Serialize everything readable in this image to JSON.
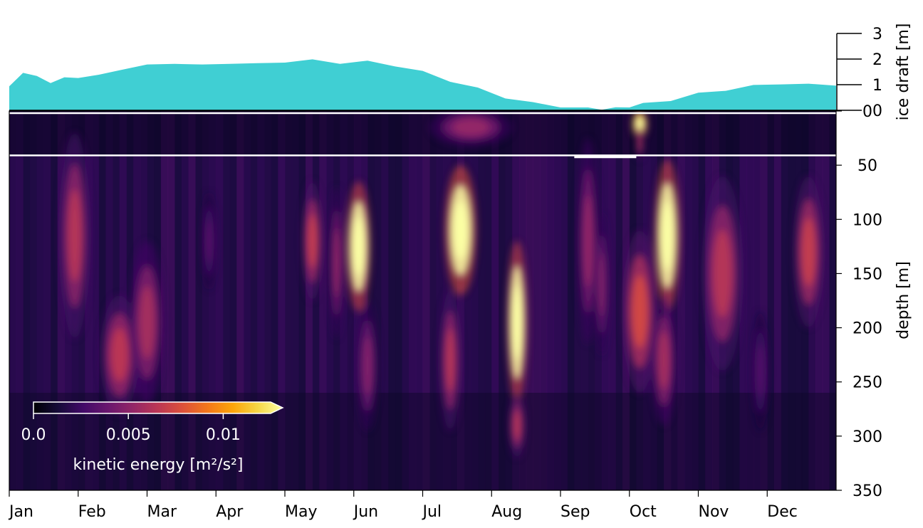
{
  "chart_data": [
    {
      "type": "area",
      "panel": "ice-draft",
      "ylabel": "ice draft [m]",
      "ylim": [
        0,
        3
      ],
      "yticks": [
        "0",
        "1",
        "2",
        "3"
      ],
      "y_axis_side": "right",
      "fill_color": "#40cfd3",
      "x_unit": "month",
      "x": [
        0.0,
        0.2,
        0.4,
        0.6,
        0.8,
        1.0,
        1.3,
        1.6,
        2.0,
        2.4,
        2.8,
        3.2,
        3.6,
        4.0,
        4.4,
        4.8,
        5.2,
        5.6,
        6.0,
        6.4,
        6.8,
        7.2,
        7.6,
        8.0,
        8.4,
        8.6,
        8.8,
        9.0,
        9.2,
        9.6,
        10.0,
        10.4,
        10.8,
        11.2,
        11.6,
        12.0
      ],
      "y": [
        0.9,
        1.5,
        1.3,
        1.1,
        1.25,
        1.3,
        1.35,
        1.6,
        1.75,
        1.85,
        1.75,
        1.85,
        1.8,
        1.9,
        1.95,
        1.85,
        1.9,
        1.75,
        1.5,
        1.15,
        0.85,
        0.5,
        0.28,
        0.15,
        0.07,
        0.06,
        0.08,
        0.15,
        0.25,
        0.4,
        0.65,
        0.8,
        0.95,
        1.05,
        1.0,
        1.0
      ]
    },
    {
      "type": "heatmap",
      "panel": "kinetic-energy",
      "ylabel": "depth [m]",
      "ylim": [
        350,
        0
      ],
      "yticks": [
        "0",
        "50",
        "100",
        "150",
        "200",
        "250",
        "300",
        "350"
      ],
      "y_axis_side": "right",
      "x_months": [
        "Jan",
        "Feb",
        "Mar",
        "Apr",
        "May",
        "Jun",
        "Jul",
        "Aug",
        "Sep",
        "Oct",
        "Nov",
        "Dec"
      ],
      "colormap": "inferno",
      "colorbar": {
        "label": "kinetic energy [m²/s²]",
        "ticks": [
          "0.0",
          "0.005",
          "0.01"
        ],
        "range": [
          0,
          0.0125
        ],
        "extend": "max",
        "placement": "lower-left"
      },
      "horizontal_lines_depth_m": [
        2,
        41
      ],
      "blobs": [
        {
          "month": 0.95,
          "depth": 115,
          "width": 0.22,
          "height": 95,
          "value": 0.006
        },
        {
          "month": 1.6,
          "depth": 225,
          "width": 0.28,
          "height": 55,
          "value": 0.0062
        },
        {
          "month": 2.0,
          "depth": 195,
          "width": 0.25,
          "height": 75,
          "value": 0.0055
        },
        {
          "month": 2.9,
          "depth": 120,
          "width": 0.1,
          "height": 45,
          "value": 0.0032
        },
        {
          "month": 4.4,
          "depth": 120,
          "width": 0.15,
          "height": 55,
          "value": 0.0065
        },
        {
          "month": 4.75,
          "depth": 140,
          "width": 0.1,
          "height": 70,
          "value": 0.005
        },
        {
          "month": 5.07,
          "depth": 125,
          "width": 0.18,
          "height": 60,
          "value": 0.016
        },
        {
          "month": 5.2,
          "depth": 235,
          "width": 0.15,
          "height": 60,
          "value": 0.0045
        },
        {
          "month": 6.55,
          "depth": 110,
          "width": 0.23,
          "height": 60,
          "value": 0.017
        },
        {
          "month": 6.4,
          "depth": 230,
          "width": 0.15,
          "height": 65,
          "value": 0.006
        },
        {
          "month": 7.37,
          "depth": 195,
          "width": 0.15,
          "height": 75,
          "value": 0.016
        },
        {
          "month": 7.37,
          "depth": 290,
          "width": 0.12,
          "height": 30,
          "value": 0.006
        },
        {
          "month": 8.4,
          "depth": 120,
          "width": 0.15,
          "height": 95,
          "value": 0.005
        },
        {
          "month": 8.6,
          "depth": 160,
          "width": 0.1,
          "height": 65,
          "value": 0.0045
        },
        {
          "month": 9.15,
          "depth": 185,
          "width": 0.25,
          "height": 75,
          "value": 0.007
        },
        {
          "month": 9.55,
          "depth": 115,
          "width": 0.19,
          "height": 70,
          "value": 0.016
        },
        {
          "month": 9.5,
          "depth": 230,
          "width": 0.18,
          "height": 60,
          "value": 0.0055
        },
        {
          "month": 10.35,
          "depth": 150,
          "width": 0.3,
          "height": 90,
          "value": 0.006
        },
        {
          "month": 10.9,
          "depth": 240,
          "width": 0.12,
          "height": 55,
          "value": 0.003
        },
        {
          "month": 11.6,
          "depth": 130,
          "width": 0.22,
          "height": 70,
          "value": 0.0065
        },
        {
          "month": 6.7,
          "depth": 15,
          "width": 0.6,
          "height": 18,
          "value": 0.005
        },
        {
          "month": 9.15,
          "depth": 12,
          "width": 0.12,
          "height": 14,
          "value": 0.014
        },
        {
          "month": 9.15,
          "depth": 30,
          "width": 0.05,
          "height": 15,
          "value": 0.006
        }
      ]
    }
  ]
}
